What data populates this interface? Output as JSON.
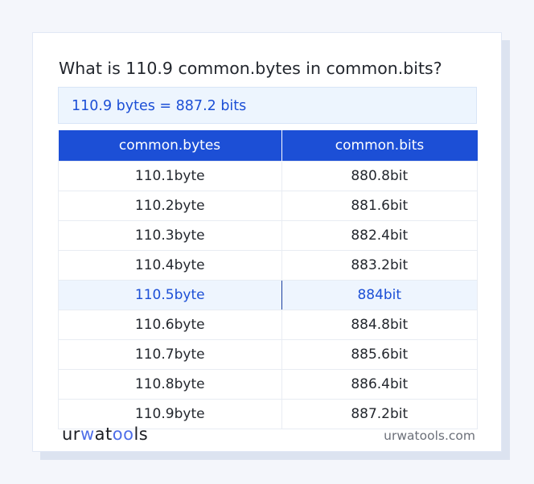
{
  "title": "What is 110.9 common.bytes in common.bits?",
  "result": "110.9 bytes = 887.2 bits",
  "table": {
    "headers": [
      "common.bytes",
      "common.bits"
    ],
    "rows": [
      [
        "110.1byte",
        "880.8bit"
      ],
      [
        "110.2byte",
        "881.6bit"
      ],
      [
        "110.3byte",
        "882.4bit"
      ],
      [
        "110.4byte",
        "883.2bit"
      ],
      [
        "110.5byte",
        "884bit"
      ],
      [
        "110.6byte",
        "884.8bit"
      ],
      [
        "110.7byte",
        "885.6bit"
      ],
      [
        "110.8byte",
        "886.4bit"
      ],
      [
        "110.9byte",
        "887.2bit"
      ]
    ],
    "highlighted_row": 4
  },
  "footer": {
    "logo": {
      "a": "ur",
      "b": "w",
      "c": "at",
      "d": "oo",
      "e": "ls"
    },
    "site": "urwatools.com"
  },
  "colors": {
    "accent": "#1c4fd6",
    "highlight_bg": "#eef5fe"
  }
}
